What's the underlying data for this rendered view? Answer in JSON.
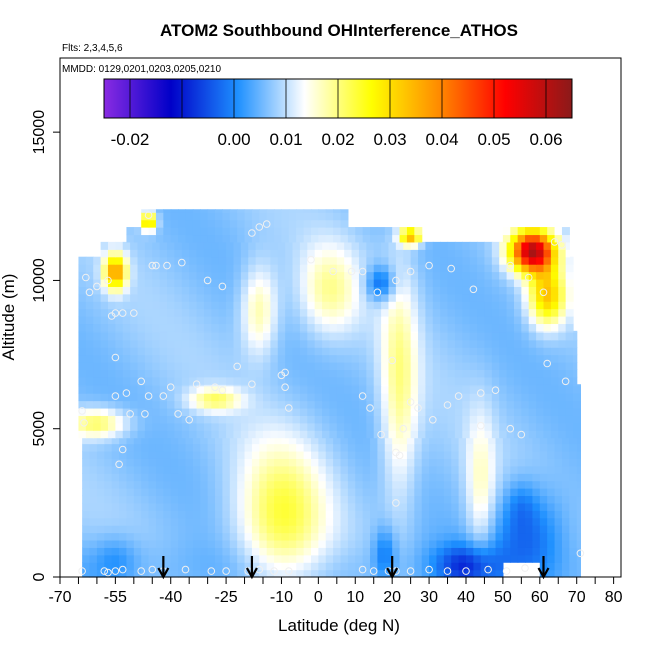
{
  "chart_data": {
    "type": "heatmap",
    "title": "ATOM2 Southbound OHInterference_ATHOS",
    "flights_label": "Flts: 2,3,4,5,6",
    "dates_label": "MMDD: 0129,0201,0203,0205,0210",
    "xlabel": "Latitude (deg N)",
    "ylabel": "Altitude (m)",
    "xlim": [
      -70,
      82
    ],
    "ylim": [
      0,
      17500
    ],
    "x_ticks": [
      -70,
      -55,
      -40,
      -25,
      -10,
      0,
      10,
      20,
      30,
      40,
      50,
      60,
      70,
      80
    ],
    "x_tick_labels": [
      "-70",
      "-55",
      "-40",
      "-25",
      "-10",
      "0",
      "10",
      "20",
      "30",
      "40",
      "50",
      "60",
      "70",
      "80"
    ],
    "x_minor_ticks": [
      -65,
      -60,
      -50,
      -45,
      -35,
      -30,
      -20,
      -15,
      -5,
      5,
      15,
      25,
      35,
      45,
      55,
      65,
      75
    ],
    "y_ticks": [
      0,
      5000,
      10000,
      15000
    ],
    "y_tick_labels": [
      "0",
      "5000",
      "10000",
      "15000"
    ],
    "colorbar": {
      "range": [
        -0.025,
        0.065
      ],
      "colors": [
        "#8a2be2",
        "#0000c8",
        "#1e90ff",
        "#ffffff",
        "#ffff00",
        "#ff8c00",
        "#ff0000",
        "#8b1a1a"
      ],
      "ticks": [
        -0.02,
        0.0,
        0.01,
        0.02,
        0.03,
        0.04,
        0.05,
        0.06
      ],
      "tick_labels": [
        "-0.02",
        "0.00",
        "0.01",
        "0.02",
        "0.03",
        "0.04",
        "0.05",
        "0.06"
      ]
    },
    "arrows_lat": [
      -42,
      -18,
      20,
      61
    ],
    "coverage": [
      {
        "alt0": 0,
        "alt1": 500,
        "lat0": -64,
        "lat1": 50
      },
      {
        "alt0": 0,
        "alt1": 1000,
        "lat0": 60,
        "lat1": 71
      },
      {
        "alt0": 500,
        "alt1": 4700,
        "lat0": -64,
        "lat1": 71
      },
      {
        "alt0": 4700,
        "alt1": 6500,
        "lat0": -65,
        "lat1": 71
      },
      {
        "alt0": 6500,
        "alt1": 8300,
        "lat0": -65,
        "lat1": 70
      },
      {
        "alt0": 8300,
        "alt1": 10800,
        "lat0": -65,
        "lat1": 69
      },
      {
        "alt0": 10800,
        "alt1": 11300,
        "lat0": -59,
        "lat1": 68
      },
      {
        "alt0": 11300,
        "alt1": 11800,
        "lat0": -52,
        "lat1": 28
      },
      {
        "alt0": 11300,
        "alt1": 11800,
        "lat0": 50,
        "lat1": 68
      },
      {
        "alt0": 11800,
        "alt1": 12400,
        "lat0": -48,
        "lat1": 8
      }
    ],
    "anomalies": [
      {
        "lat": -10,
        "alt": 2000,
        "sx": 12,
        "sy": 2500,
        "v": 0.016
      },
      {
        "lat": -16,
        "alt": 9000,
        "sx": 5,
        "sy": 1500,
        "v": 0.012
      },
      {
        "lat": 22,
        "alt": 6500,
        "sx": 5,
        "sy": 4000,
        "v": 0.012
      },
      {
        "lat": 3,
        "alt": 9700,
        "sx": 8,
        "sy": 1500,
        "v": 0.011
      },
      {
        "lat": 44,
        "alt": 3000,
        "sx": 4,
        "sy": 2500,
        "v": 0.009
      },
      {
        "lat": -55,
        "alt": 600,
        "sx": 6,
        "sy": 800,
        "v": -0.005
      },
      {
        "lat": 40,
        "alt": 400,
        "sx": 8,
        "sy": 700,
        "v": -0.012
      },
      {
        "lat": 57,
        "alt": 1500,
        "sx": 10,
        "sy": 1500,
        "v": -0.01
      },
      {
        "lat": 17,
        "alt": 9900,
        "sx": 4,
        "sy": 600,
        "v": -0.012
      },
      {
        "lat": -60,
        "alt": 5200,
        "sx": 8,
        "sy": 500,
        "v": 0.015
      },
      {
        "lat": 58,
        "alt": 11000,
        "sx": 6,
        "sy": 700,
        "v": 0.052
      },
      {
        "lat": -55,
        "alt": 10300,
        "sx": 3,
        "sy": 600,
        "v": 0.03
      },
      {
        "lat": -46,
        "alt": 12000,
        "sx": 2,
        "sy": 300,
        "v": 0.028
      },
      {
        "lat": 25,
        "alt": 11500,
        "sx": 3,
        "sy": 300,
        "v": 0.028
      },
      {
        "lat": 62,
        "alt": 9500,
        "sx": 5,
        "sy": 1000,
        "v": 0.025
      },
      {
        "lat": 55,
        "alt": 2500,
        "sx": 4,
        "sy": 800,
        "v": -0.004
      },
      {
        "lat": 18,
        "alt": 800,
        "sx": 3,
        "sy": 900,
        "v": -0.008
      },
      {
        "lat": -28,
        "alt": 6000,
        "sx": 7,
        "sy": 400,
        "v": 0.013
      }
    ],
    "points": [
      [
        -64,
        5600
      ],
      [
        -63.5,
        5200
      ],
      [
        -63,
        10100
      ],
      [
        -62,
        9600
      ],
      [
        -60,
        9800
      ],
      [
        -57,
        10000
      ],
      [
        -56,
        8800
      ],
      [
        -55,
        8900
      ],
      [
        -53,
        8900
      ],
      [
        -50,
        8900
      ],
      [
        -54,
        3800
      ],
      [
        -53,
        4300
      ],
      [
        -55,
        7400
      ],
      [
        -55,
        6100
      ],
      [
        -52,
        6200
      ],
      [
        -51,
        5500
      ],
      [
        -48,
        6600
      ],
      [
        -47,
        5500
      ],
      [
        -46,
        6100
      ],
      [
        -46,
        12200
      ],
      [
        -45,
        10500
      ],
      [
        -44,
        10500
      ],
      [
        -41,
        10500
      ],
      [
        -37,
        10600
      ],
      [
        -30,
        10000
      ],
      [
        -26,
        9800
      ],
      [
        -18,
        11600
      ],
      [
        -16,
        11800
      ],
      [
        -14,
        11900
      ],
      [
        -42,
        6100
      ],
      [
        -38,
        5500
      ],
      [
        -35,
        5300
      ],
      [
        -28,
        6400
      ],
      [
        -26,
        6300
      ],
      [
        -22,
        7100
      ],
      [
        -18,
        6500
      ],
      [
        -10,
        6800
      ],
      [
        -9,
        6900
      ],
      [
        -8,
        5700
      ],
      [
        -40,
        6400
      ],
      [
        -33,
        6500
      ],
      [
        -9,
        6400
      ],
      [
        -2,
        10700
      ],
      [
        4,
        10300
      ],
      [
        9,
        10300
      ],
      [
        12,
        10300
      ],
      [
        16,
        9600
      ],
      [
        21,
        10000
      ],
      [
        25,
        10300
      ],
      [
        30,
        10500
      ],
      [
        36,
        10400
      ],
      [
        42,
        9700
      ],
      [
        52,
        10500
      ],
      [
        57,
        10100
      ],
      [
        61,
        9600
      ],
      [
        64,
        11300
      ],
      [
        66,
        11200
      ],
      [
        12,
        6100
      ],
      [
        14,
        5700
      ],
      [
        17,
        4800
      ],
      [
        20,
        7300
      ],
      [
        23,
        5000
      ],
      [
        25,
        5900
      ],
      [
        27,
        5700
      ],
      [
        31,
        5300
      ],
      [
        35,
        5800
      ],
      [
        38,
        6100
      ],
      [
        44,
        6200
      ],
      [
        44,
        5100
      ],
      [
        48,
        6300
      ],
      [
        52,
        5000
      ],
      [
        55,
        4800
      ],
      [
        62,
        7200
      ],
      [
        67,
        6600
      ],
      [
        22,
        4100
      ],
      [
        21,
        4200
      ],
      [
        21,
        2500
      ],
      [
        -64,
        200
      ],
      [
        -58,
        200
      ],
      [
        -57,
        150
      ],
      [
        -55,
        200
      ],
      [
        -53,
        250
      ],
      [
        -48,
        200
      ],
      [
        -45,
        250
      ],
      [
        -42,
        200
      ],
      [
        -36,
        250
      ],
      [
        -29,
        200
      ],
      [
        -25,
        200
      ],
      [
        -19,
        200
      ],
      [
        -16,
        250
      ],
      [
        -12,
        200
      ],
      [
        -8,
        200
      ],
      [
        12,
        250
      ],
      [
        15,
        200
      ],
      [
        19,
        200
      ],
      [
        21,
        200
      ],
      [
        25,
        200
      ],
      [
        30,
        250
      ],
      [
        35,
        200
      ],
      [
        40,
        200
      ],
      [
        46,
        250
      ],
      [
        51,
        200
      ],
      [
        56,
        300
      ],
      [
        71,
        800
      ]
    ]
  }
}
